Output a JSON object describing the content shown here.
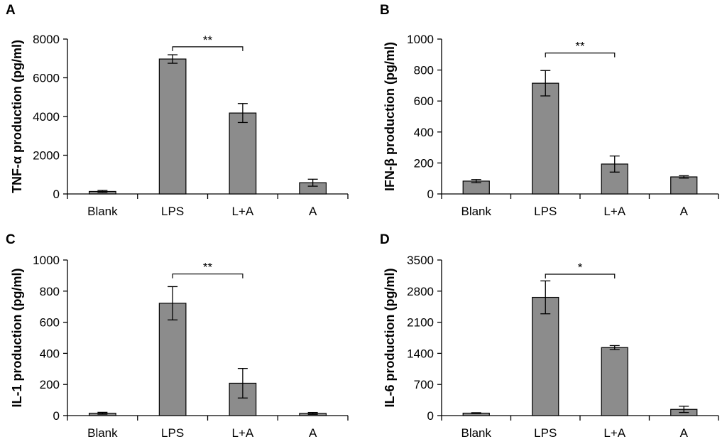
{
  "chart_data": [
    {
      "id": "A",
      "type": "bar",
      "panel_letter": "A",
      "ylabel": "TNF-α production (pg/ml)",
      "categories": [
        "Blank",
        "LPS",
        "L+A",
        "A"
      ],
      "values": [
        130,
        6970,
        4180,
        580
      ],
      "errors": [
        50,
        220,
        490,
        180
      ],
      "yticks": [
        "0",
        "2000",
        "4000",
        "6000",
        "8000"
      ],
      "ylim": [
        0,
        8000
      ],
      "significance": {
        "from": "LPS",
        "to": "L+A",
        "label": "**",
        "level": 7600
      }
    },
    {
      "id": "B",
      "type": "bar",
      "panel_letter": "B",
      "ylabel": "IFN-β production (pg/ml)",
      "categories": [
        "Blank",
        "LPS",
        "L+A",
        "A"
      ],
      "values": [
        83,
        715,
        193,
        110
      ],
      "errors": [
        10,
        82,
        52,
        8
      ],
      "yticks": [
        "0",
        "200",
        "400",
        "600",
        "800",
        "1000"
      ],
      "ylim": [
        0,
        1000
      ],
      "significance": {
        "from": "LPS",
        "to": "L+A",
        "label": "**",
        "level": 910
      }
    },
    {
      "id": "C",
      "type": "bar",
      "panel_letter": "C",
      "ylabel": "IL-1 production (pg/ml)",
      "categories": [
        "Blank",
        "LPS",
        "L+A",
        "A"
      ],
      "values": [
        15,
        722,
        208,
        14
      ],
      "errors": [
        6,
        107,
        95,
        6
      ],
      "yticks": [
        "0",
        "200",
        "400",
        "600",
        "800",
        "1000"
      ],
      "ylim": [
        0,
        1000
      ],
      "significance": {
        "from": "LPS",
        "to": "L+A",
        "label": "**",
        "level": 910
      }
    },
    {
      "id": "D",
      "type": "bar",
      "panel_letter": "D",
      "ylabel": "IL-6 production (pg/ml)",
      "categories": [
        "Blank",
        "LPS",
        "L+A",
        "A"
      ],
      "values": [
        55,
        2660,
        1530,
        140
      ],
      "errors": [
        10,
        370,
        45,
        70
      ],
      "yticks": [
        "0",
        "700",
        "1400",
        "2100",
        "2800",
        "3500"
      ],
      "ylim": [
        0,
        3500
      ],
      "significance": {
        "from": "LPS",
        "to": "L+A",
        "label": "*",
        "level": 3180
      }
    }
  ]
}
